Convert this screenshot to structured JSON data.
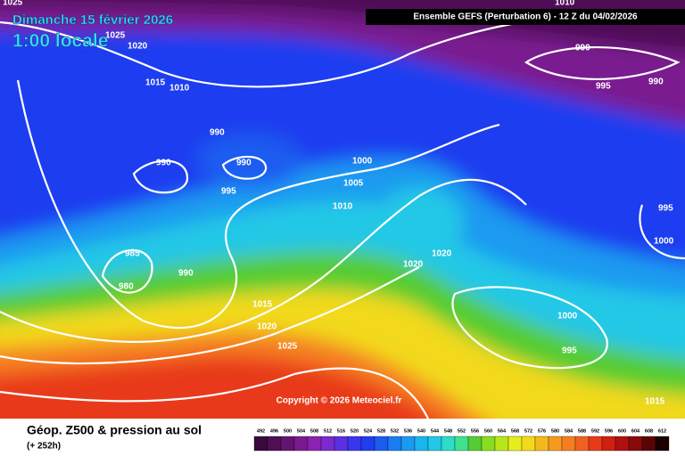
{
  "header": {
    "date": "Dimanche 15 février 2026",
    "time": "1:00 locale",
    "model": "Ensemble GEFS  (Perturbation 6)  -  12 Z du 04/02/2026"
  },
  "copyright": "Copyright © 2026 Meteociel.fr",
  "footer": {
    "title": "Géop. Z500 & pression au sol",
    "lead": "(+ 252h)"
  },
  "isobar_labels": [
    1025,
    1025,
    1020,
    1015,
    1010,
    990,
    990,
    990,
    995,
    985,
    980,
    990,
    1000,
    1005,
    1010,
    1015,
    1020,
    1025,
    1020,
    1020,
    1010,
    990,
    995,
    990,
    995,
    1000,
    1000,
    995,
    1015
  ],
  "color_scale": {
    "values": [
      492,
      496,
      500,
      504,
      508,
      512,
      516,
      520,
      524,
      528,
      532,
      536,
      540,
      544,
      548,
      552,
      556,
      560,
      564,
      568,
      572,
      576,
      580,
      584,
      588,
      592,
      596,
      600,
      604,
      608,
      612
    ],
    "colors": [
      "#3a0a3a",
      "#4e0f55",
      "#631470",
      "#7a1a90",
      "#8c22b0",
      "#7a2ad0",
      "#5a30e0",
      "#3a36ee",
      "#1e3ef0",
      "#1a5cf0",
      "#1a7cf0",
      "#1a9af0",
      "#1ab4ee",
      "#22c8e6",
      "#2edcc8",
      "#40e090",
      "#55cc33",
      "#88dd22",
      "#b8e61a",
      "#e6ee1a",
      "#f2d91a",
      "#f5b81c",
      "#f59a1e",
      "#f57f20",
      "#f06020",
      "#e83a1a",
      "#d02010",
      "#b01010",
      "#880a0a",
      "#5a0505",
      "#1a0000"
    ]
  }
}
